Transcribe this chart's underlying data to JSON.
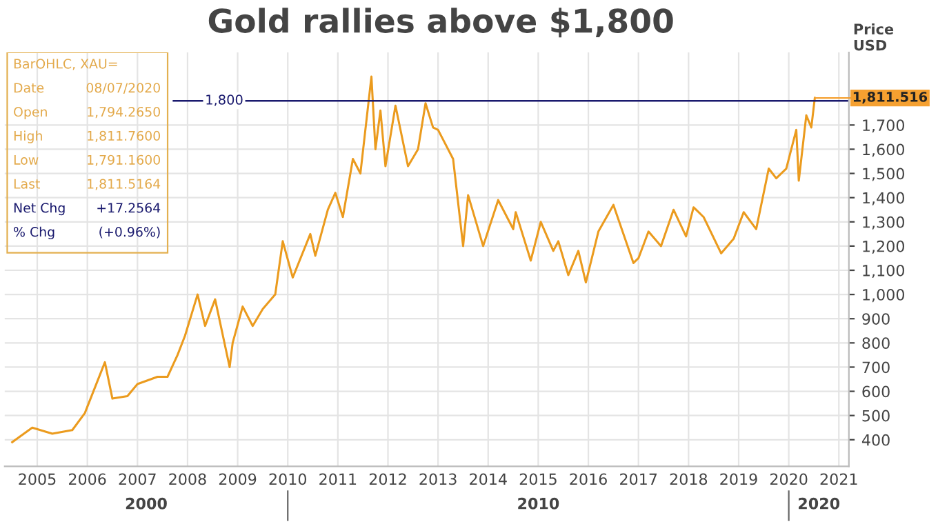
{
  "chart_data": {
    "type": "line",
    "title": "Gold rallies above $1,800",
    "ylabel": "Price\nUSD",
    "x": [
      2004.5,
      2004.9,
      2005.3,
      2005.7,
      2005.95,
      2006.35,
      2006.5,
      2006.8,
      2007.0,
      2007.4,
      2007.6,
      2007.8,
      2007.95,
      2008.2,
      2008.35,
      2008.55,
      2008.84,
      2008.9,
      2009.1,
      2009.3,
      2009.5,
      2009.75,
      2009.9,
      2010.1,
      2010.45,
      2010.55,
      2010.8,
      2010.95,
      2011.1,
      2011.3,
      2011.45,
      2011.67,
      2011.75,
      2011.85,
      2011.95,
      2012.15,
      2012.4,
      2012.6,
      2012.75,
      2012.9,
      2013.0,
      2013.3,
      2013.5,
      2013.6,
      2013.9,
      2014.2,
      2014.5,
      2014.55,
      2014.85,
      2015.05,
      2015.3,
      2015.4,
      2015.6,
      2015.8,
      2015.95,
      2016.2,
      2016.5,
      2016.9,
      2017.0,
      2017.2,
      2017.45,
      2017.7,
      2017.95,
      2018.1,
      2018.3,
      2018.65,
      2018.9,
      2019.1,
      2019.35,
      2019.6,
      2019.75,
      2019.95,
      2020.15,
      2020.2,
      2020.35,
      2020.45,
      2020.52
    ],
    "series": [
      {
        "color": "#eb9b1e",
        "values": [
          390,
          450,
          425,
          440,
          510,
          720,
          570,
          580,
          630,
          660,
          660,
          750,
          830,
          1000,
          870,
          980,
          700,
          800,
          950,
          870,
          940,
          1000,
          1220,
          1070,
          1250,
          1160,
          1350,
          1420,
          1320,
          1560,
          1500,
          1900,
          1600,
          1760,
          1530,
          1780,
          1530,
          1600,
          1790,
          1690,
          1680,
          1560,
          1200,
          1410,
          1200,
          1390,
          1270,
          1340,
          1140,
          1300,
          1180,
          1220,
          1080,
          1180,
          1050,
          1260,
          1370,
          1130,
          1150,
          1260,
          1200,
          1350,
          1240,
          1360,
          1320,
          1170,
          1230,
          1340,
          1270,
          1520,
          1480,
          1520,
          1680,
          1470,
          1740,
          1690,
          1812
        ]
      }
    ],
    "xlim": [
      2004.35,
      2021.2
    ],
    "ylim": [
      290,
      2000
    ],
    "xticks": [
      2005,
      2006,
      2007,
      2008,
      2009,
      2010,
      2011,
      2012,
      2013,
      2014,
      2015,
      2016,
      2017,
      2018,
      2019,
      2020,
      2021
    ],
    "yticks": [
      {
        "value": 400,
        "label": "400"
      },
      {
        "value": 500,
        "label": "500"
      },
      {
        "value": 600,
        "label": "600"
      },
      {
        "value": 700,
        "label": "700"
      },
      {
        "value": 800,
        "label": "800"
      },
      {
        "value": 900,
        "label": "900"
      },
      {
        "value": 1000,
        "label": "1,000"
      },
      {
        "value": 1100,
        "label": "1,100"
      },
      {
        "value": 1200,
        "label": "1,200"
      },
      {
        "value": 1300,
        "label": "1,300"
      },
      {
        "value": 1400,
        "label": "1,400"
      },
      {
        "value": 1500,
        "label": "1,500"
      },
      {
        "value": 1600,
        "label": "1,600"
      },
      {
        "value": 1700,
        "label": "1,700"
      }
    ],
    "grid": true,
    "ref_lines": [
      {
        "axis": "y",
        "value": 1800,
        "label": "1,800",
        "color": "#1a1a6e"
      }
    ],
    "annotations": [
      "BarOHLC, XAU=",
      "Date",
      "08/07/2020",
      "Open",
      "1,794.2650",
      "High",
      "1,811.7600",
      "Low",
      "1,791.1600",
      "Last",
      "1,811.5164",
      "Net Chg",
      "+17.2564",
      "% Chg",
      "(+0.96%)",
      {
        "text": "1,811.516",
        "x": 2020.52,
        "y": 1811.516
      },
      "2000",
      "2010",
      "2020"
    ]
  }
}
